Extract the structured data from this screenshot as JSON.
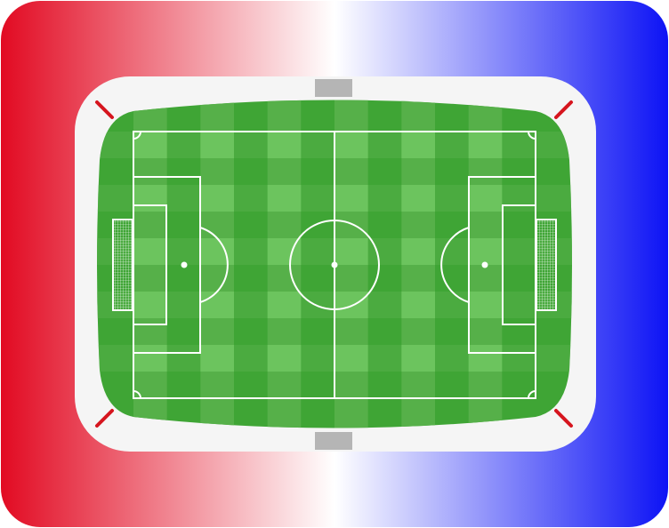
{
  "colors": {
    "left_team": "#e20a22",
    "right_team": "#0d13f5",
    "stand": "#f5f5f5",
    "pitch_dark": "#3fa535",
    "pitch_mid": "#56b049",
    "pitch_light": "#6cc45e",
    "lines": "#ffffff",
    "goal_gate": "#b5b5b5",
    "corner_flag": "#d6151e"
  },
  "pitch": {
    "vertical_stripes": 12,
    "horizontal_stripes": 10,
    "marking_style": "standard"
  },
  "icons": {
    "left_goal": "goal-net-icon",
    "right_goal": "goal-net-icon",
    "top_gate": "gate-icon",
    "bottom_gate": "gate-icon"
  }
}
